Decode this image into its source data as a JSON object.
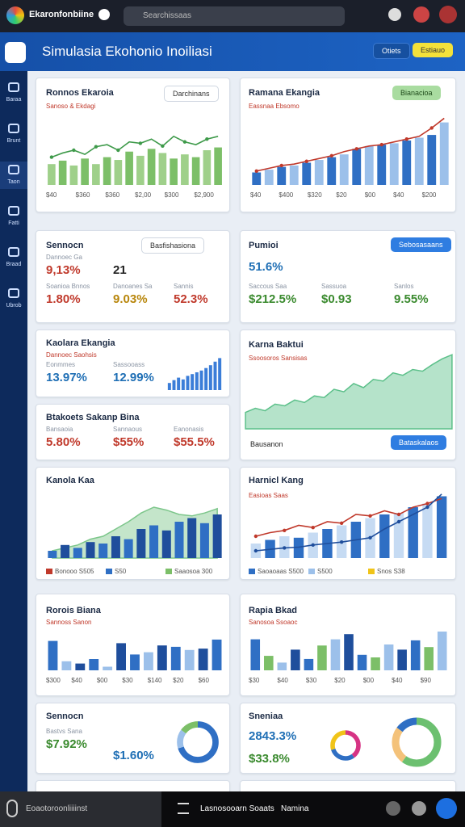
{
  "topbar": {
    "app_name": "Ekaronfonbiine",
    "search": "Searchissaas"
  },
  "header": {
    "title": "Simulasia Ekohonio Inoiliasi",
    "buttons": [
      "Otiets",
      "Estiauo"
    ]
  },
  "sidebar": [
    "Baraa",
    "Brunt",
    "Taon",
    "Fatti",
    "Braad",
    "Ubrob"
  ],
  "cards": [
    {
      "title": "Ronnos Ekaroia",
      "button": "Darchinans",
      "button_style": "outline",
      "note": "Sanoso & Ekdagi",
      "x_labels": [
        "$40",
        "$360",
        "$360",
        "$2,00",
        "$300",
        "$2,900"
      ],
      "chart": {
        "ylim": [
          0,
          100
        ],
        "bars": [
          30,
          35,
          28,
          38,
          30,
          40,
          36,
          48,
          42,
          52,
          46,
          38,
          44,
          40,
          50,
          54
        ],
        "bar_colors": [
          "#9fd08a",
          "#7cbf68"
        ],
        "lines": [
          {
            "values": [
              40,
              46,
              50,
              44,
              55,
              58,
              50,
              62,
              60,
              66,
              56,
              70,
              62,
              58,
              66,
              70
            ],
            "color": "#3e9a4a"
          }
        ]
      }
    },
    {
      "title": "Ramana Ekangia",
      "button": "Bianacioa",
      "button_style": "green",
      "note": "Eassnaa Ebsomo",
      "x_labels": [
        "$40",
        "$400",
        "$320",
        "$20",
        "$00",
        "$40",
        "$200"
      ],
      "chart": {
        "ylim": [
          0,
          100
        ],
        "bars": [
          18,
          22,
          26,
          28,
          32,
          36,
          40,
          44,
          52,
          56,
          58,
          60,
          64,
          68,
          72,
          90
        ],
        "bar_colors": [
          "#2f6fc4",
          "#9cc0ea"
        ],
        "lines": [
          {
            "values": [
              20,
              24,
              28,
              30,
              34,
              38,
              42,
              48,
              52,
              56,
              58,
              62,
              66,
              70,
              82,
              96
            ],
            "color": "#c0392b"
          }
        ]
      }
    },
    {
      "title": "Sennocn",
      "button": "Basfishasiona",
      "button_style": "outline",
      "stats": [
        {
          "label": "Dannoec Ga",
          "value": "9,13%",
          "color": "#c0392b"
        },
        {
          "value": "21",
          "color": "#222222"
        },
        {
          "label": "Soanioa Bnnos",
          "value": "1.80%",
          "color": "#c0392b"
        },
        {
          "label": "Danoanes Sa",
          "value": "9.03%",
          "color": "#b8860b"
        },
        {
          "label": "Sannis",
          "value": "52.3%",
          "color": "#c0392b"
        }
      ]
    },
    {
      "title": "Pumioi",
      "button": "Sebosasaans",
      "button_style": "blue",
      "stats": [
        {
          "value": "51.6%",
          "color": "#1f6fb5"
        },
        {
          "label": "Saccous Saa",
          "value": "$212.5%",
          "color": "#3a8a2e"
        },
        {
          "label": "Sassuoa",
          "value": "$0.93",
          "color": "#3a8a2e"
        },
        {
          "label": "Sanlos",
          "value": "9.55%",
          "color": "#3a8a2e"
        }
      ]
    },
    {
      "title": "Kaolara Ekangia",
      "note": "Dannoec Saohsis",
      "stats": [
        {
          "label": "Eonmmes",
          "value": "13.97%",
          "color": "#1f6fb5"
        },
        {
          "label": "Sassooass",
          "value": "12.99%",
          "color": "#1f6fb5"
        }
      ],
      "chart": {
        "ylim": [
          0,
          100
        ],
        "bars": [
          20,
          28,
          35,
          30,
          40,
          45,
          50,
          55,
          62,
          70,
          80,
          90
        ],
        "bar_colors": [
          "#3b7dd8"
        ]
      }
    },
    {
      "title": "Btakoets Sakanp Bina",
      "stats": [
        {
          "label": "Bansaoia",
          "value": "5.80%",
          "color": "#c0392b"
        },
        {
          "label": "Sannaous",
          "value": "$55%",
          "color": "#c0392b"
        },
        {
          "label": "Eanonasis",
          "value": "$55.5%",
          "color": "#c0392b"
        }
      ]
    },
    {
      "title": "Karna Baktui",
      "note": "Ssoosoros Sansisas",
      "footer": "Bausanon",
      "button": "Bataskalaos",
      "button_style": "blue",
      "chart": {
        "ylim": [
          0,
          100
        ],
        "area": {
          "values": [
            20,
            25,
            22,
            30,
            28,
            35,
            32,
            40,
            38,
            48,
            45,
            55,
            50,
            60,
            58,
            68,
            65,
            72,
            70,
            78,
            85,
            90
          ],
          "color": "#5cc08a"
        }
      }
    },
    {
      "title": "Kanola Kaa",
      "legend": [
        {
          "name": "Bonooo S505",
          "color": "#c0392b"
        },
        {
          "name": "S50",
          "color": "#2f6fc4"
        },
        {
          "name": "Saaosoa 300",
          "color": "#7cbf68"
        }
      ],
      "chart": {
        "ylim": [
          0,
          100
        ],
        "bars": [
          10,
          18,
          14,
          22,
          20,
          30,
          26,
          40,
          45,
          38,
          50,
          55,
          48,
          60
        ],
        "bar_colors": [
          "#2f6fc4",
          "#1f4e9c"
        ],
        "area": {
          "values": [
            10,
            14,
            18,
            26,
            30,
            40,
            50,
            62,
            70,
            66,
            60,
            58,
            62,
            68
          ],
          "color": "#7cc68a"
        }
      }
    },
    {
      "title": "Harnicl Kang",
      "note": "Easioas Saas",
      "legend": [
        {
          "name": "Saoaoaas S500",
          "color": "#2f6fc4"
        },
        {
          "name": "S500",
          "color": "#9cc0ea"
        },
        {
          "name": "Snos S38",
          "color": "#f0c419"
        }
      ],
      "chart": {
        "ylim": [
          0,
          100
        ],
        "bars": [
          20,
          25,
          30,
          28,
          35,
          40,
          45,
          50,
          55,
          60,
          62,
          70,
          75,
          85
        ],
        "bar_colors": [
          "#c6dbf3",
          "#2f6fc4"
        ],
        "lines": [
          {
            "values": [
              30,
              35,
              38,
              45,
              42,
              50,
              48,
              60,
              58,
              65,
              60,
              70,
              75,
              82
            ],
            "color": "#c0392b"
          },
          {
            "values": [
              10,
              12,
              14,
              15,
              18,
              20,
              22,
              25,
              28,
              40,
              50,
              60,
              70,
              88
            ],
            "color": "#1f4e9c"
          }
        ]
      }
    },
    {
      "title": "Rorois Biana",
      "note": "Sannoss Sanon",
      "x_labels": [
        "$300",
        "$40",
        "$00",
        "$30",
        "$140",
        "$20",
        "$60"
      ],
      "chart": {
        "ylim": [
          0,
          100
        ],
        "bars": [
          65,
          20,
          15,
          25,
          8,
          60,
          35,
          40,
          55,
          52,
          45,
          48,
          68
        ],
        "bar_colors": [
          "#2f6fc4",
          "#9cc0ea",
          "#1f4e9c"
        ]
      }
    },
    {
      "title": "Rapia Bkad",
      "note": "Sanosoa Ssoaoc",
      "x_labels": [
        "$30",
        "$40",
        "$30",
        "$20",
        "$00",
        "$40",
        "$90"
      ],
      "chart": {
        "ylim": [
          0,
          100
        ],
        "bars": [
          60,
          28,
          15,
          40,
          22,
          48,
          60,
          70,
          30,
          25,
          50,
          40,
          58,
          45,
          75
        ],
        "bar_colors": [
          "#2f6fc4",
          "#7cbf68",
          "#9cc0ea",
          "#1f4e9c"
        ]
      }
    },
    {
      "title": "Sennocn",
      "stats": [
        {
          "label": "Bastvs Sana",
          "value": "$7.92%",
          "color": "#3a8a2e"
        },
        {
          "value": "$1.60%",
          "color": "#1f6fb5"
        }
      ],
      "chart": {
        "donuts": [
          {
            "values": [
              70,
              15,
              15
            ],
            "colors": [
              "#2f6fc4",
              "#9cc0ea",
              "#7cbf68"
            ]
          }
        ]
      }
    },
    {
      "title": "Sneniaa",
      "stats": [
        {
          "value": "2843.3%",
          "color": "#1f6fb5"
        },
        {
          "value": "$33.8%",
          "color": "#3a8a2e"
        }
      ],
      "chart": {
        "donuts": [
          {
            "values": [
              40,
              30,
              30
            ],
            "colors": [
              "#d63384",
              "#2f6fc4",
              "#f0c419"
            ]
          },
          {
            "values": [
              60,
              25,
              15
            ],
            "colors": [
              "#6cc070",
              "#f4c27a",
              "#2f6fc4"
            ]
          }
        ]
      }
    }
  ],
  "bottombar": {
    "search": "Eoaotoroonliiiinst",
    "tab": "Lasnosooarn Soaats",
    "user": "Namina"
  }
}
